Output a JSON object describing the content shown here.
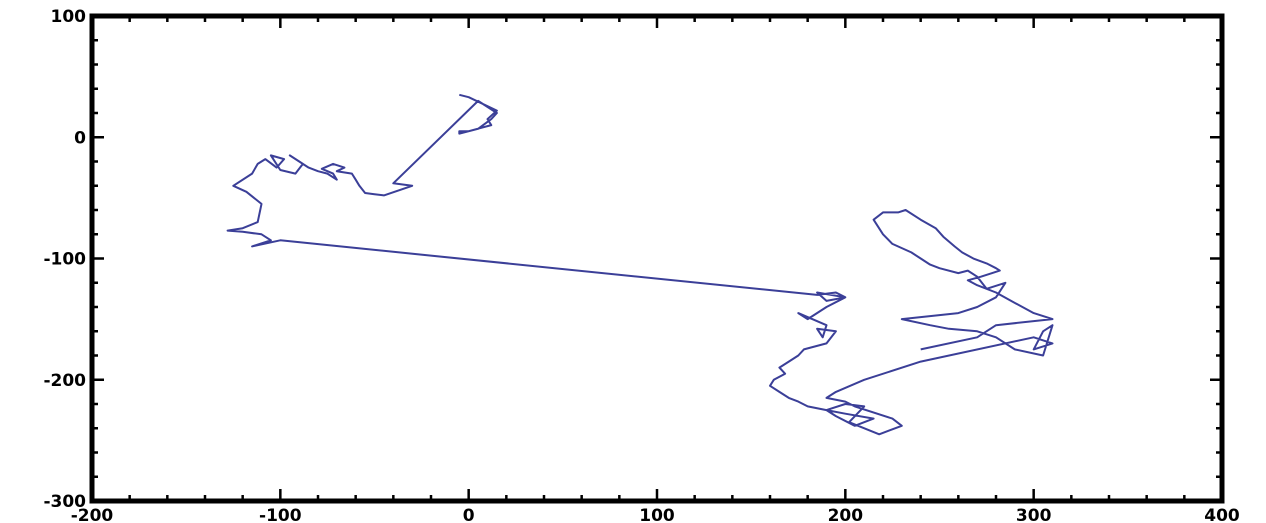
{
  "chart_data": {
    "type": "line",
    "title": "",
    "xlabel": "",
    "ylabel": "",
    "xlim": [
      -200,
      400
    ],
    "ylim": [
      -300,
      100
    ],
    "grid": false,
    "line_color": "#3b3f98",
    "x_ticks": [
      -200,
      -100,
      0,
      100,
      200,
      300,
      400
    ],
    "y_ticks": [
      100,
      0,
      -100,
      -200,
      -300
    ],
    "x_tick_labels": [
      "-200",
      "-100",
      "0",
      "100",
      "200",
      "300",
      "400"
    ],
    "y_tick_labels": [
      "100",
      "0",
      "-100",
      "-200",
      "-300"
    ],
    "series": [
      {
        "x": [
          -5,
          0,
          15,
          10,
          12,
          0,
          -5,
          -5,
          -5,
          5,
          12,
          15,
          5,
          -40,
          -30,
          -45,
          -50,
          -55,
          -58,
          -60,
          -62,
          -70,
          -66,
          -72,
          -78,
          -72,
          -70,
          -75,
          -80,
          -85,
          -90,
          -95,
          -88,
          -92,
          -100,
          -105,
          -98,
          -102,
          -108,
          -112,
          -115,
          -125,
          -118,
          -110,
          -112,
          -120,
          -128,
          -120,
          -110,
          -105,
          -115,
          -100,
          185,
          195,
          200,
          190,
          185,
          200,
          190,
          180,
          175,
          190,
          188,
          185,
          195,
          190,
          178,
          175,
          170,
          165,
          168,
          162,
          160,
          165,
          170,
          175,
          180,
          190,
          200,
          215,
          205,
          195,
          190,
          200,
          210,
          202,
          218,
          230,
          225,
          205,
          200,
          190,
          195,
          210,
          240,
          300,
          310,
          300,
          305,
          310,
          305,
          290,
          280,
          270,
          255,
          245,
          230,
          260,
          270,
          280,
          285,
          275,
          270,
          265,
          260,
          250,
          245,
          240,
          235,
          225,
          220,
          215,
          220,
          228,
          232,
          240,
          248,
          252,
          258,
          262,
          268,
          275,
          280,
          282,
          278,
          272,
          265,
          270,
          280,
          288,
          300,
          310,
          280,
          270,
          240
        ],
        "y": [
          35,
          33,
          22,
          15,
          10,
          5,
          5,
          3,
          3,
          7,
          15,
          20,
          30,
          -38,
          -40,
          -48,
          -47,
          -46,
          -40,
          -35,
          -30,
          -28,
          -25,
          -22,
          -26,
          -30,
          -35,
          -30,
          -28,
          -25,
          -20,
          -15,
          -22,
          -30,
          -27,
          -15,
          -18,
          -25,
          -18,
          -22,
          -30,
          -40,
          -45,
          -55,
          -70,
          -75,
          -77,
          -78,
          -80,
          -85,
          -90,
          -85,
          -130,
          -128,
          -132,
          -135,
          -128,
          -132,
          -140,
          -150,
          -145,
          -155,
          -165,
          -158,
          -160,
          -170,
          -175,
          -180,
          -185,
          -190,
          -195,
          -200,
          -205,
          -210,
          -215,
          -218,
          -222,
          -225,
          -228,
          -232,
          -238,
          -230,
          -225,
          -220,
          -222,
          -235,
          -245,
          -238,
          -232,
          -222,
          -218,
          -215,
          -210,
          -200,
          -185,
          -165,
          -170,
          -175,
          -160,
          -155,
          -180,
          -175,
          -165,
          -160,
          -158,
          -155,
          -150,
          -145,
          -140,
          -132,
          -120,
          -125,
          -115,
          -110,
          -112,
          -108,
          -105,
          -100,
          -95,
          -88,
          -80,
          -68,
          -62,
          -62,
          -60,
          -68,
          -75,
          -82,
          -90,
          -95,
          -100,
          -104,
          -108,
          -110,
          -112,
          -115,
          -118,
          -122,
          -128,
          -135,
          -145,
          -150,
          -155,
          -165,
          -175
        ]
      }
    ]
  }
}
